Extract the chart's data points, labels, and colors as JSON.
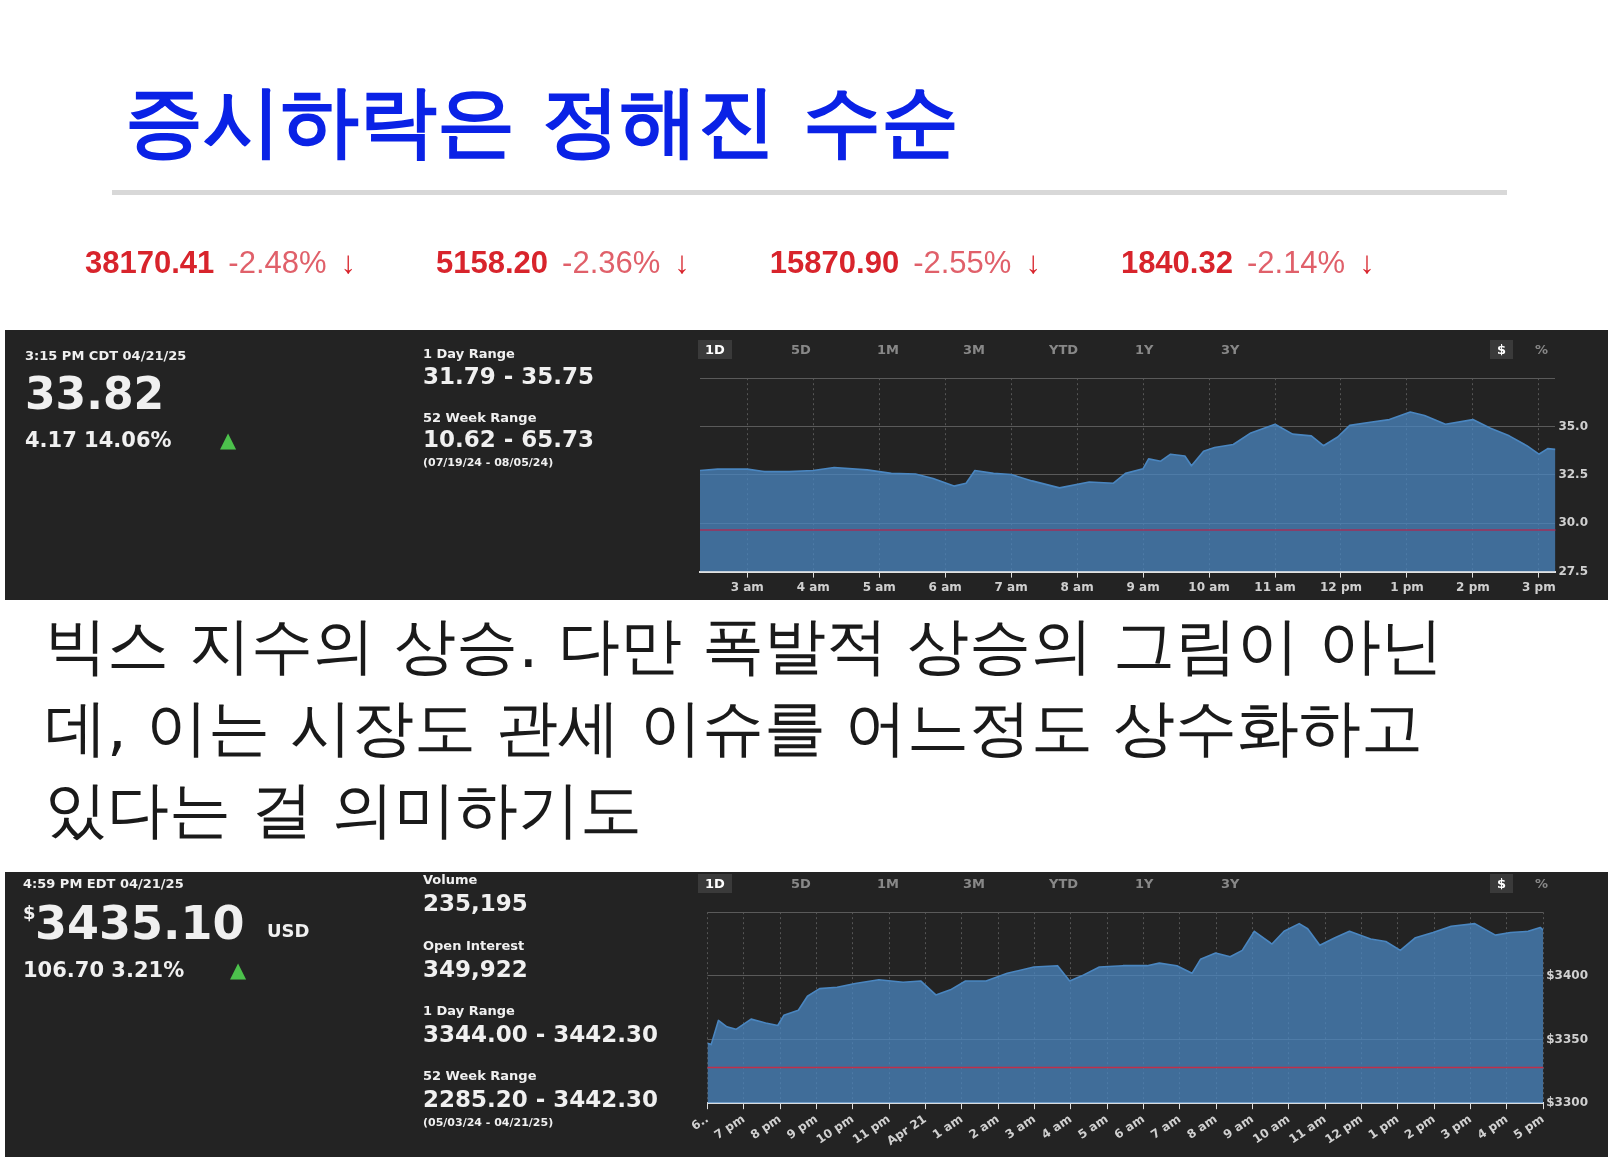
{
  "chart_data": [
    {
      "type": "other",
      "title": "증시하락은 정해진 수순",
      "annotations": [
        "38170.41",
        "-2.48%",
        "↓",
        "5158.20",
        "-2.36%",
        "↓",
        "15870.90",
        "-2.55%",
        "↓",
        "1840.32",
        "-2.14%",
        "↓"
      ]
    },
    {
      "type": "other",
      "annotations": [
        "3:15 PM CDT 04/21/25",
        "33.82",
        "4.17  14.06%",
        "▲",
        "1 Day Range",
        "31.79 - 35.75",
        "52 Week Range",
        "10.62 - 65.73",
        "(07/19/24 - 08/05/24)"
      ]
    },
    {
      "type": "area",
      "annotations": [
        "1D",
        "5D",
        "1M",
        "3M",
        "YTD",
        "1Y",
        "3Y",
        "$",
        "%"
      ],
      "x": [
        "--04-21T02:17",
        "--04-21T02:33",
        "--04-21T03:00",
        "--04-21T03:16",
        "--04-21T03:38",
        "--04-21T04:00",
        "--04-21T04:19",
        "--04-21T04:49",
        "--04-21T05:11",
        "--04-21T05:33",
        "--04-21T05:49",
        "--04-21T06:08",
        "--04-21T06:19",
        "--04-21T06:27",
        "--04-21T06:44",
        "--04-21T07:00",
        "--04-21T07:19",
        "--04-21T07:44",
        "--04-21T08:11",
        "--04-21T08:33",
        "--04-21T08:44",
        "--04-21T09:00",
        "--04-21T09:05",
        "--04-21T09:16",
        "--04-21T09:25",
        "--04-21T09:38",
        "--04-21T09:44",
        "--04-21T09:55",
        "--04-21T10:05",
        "--04-21T10:22",
        "--04-21T10:38",
        "--04-21T11:00",
        "--04-21T11:16",
        "--04-21T11:33",
        "--04-21T11:44",
        "--04-21T11:57",
        "--04-21T12:08",
        "--04-21T12:25",
        "--04-21T12:44",
        "--04-21T13:03",
        "--04-21T13:16",
        "--04-21T13:35",
        "--04-21T14:00",
        "--04-21T14:16",
        "--04-21T14:33",
        "--04-21T14:49",
        "--04-21T15:00",
        "--04-21T15:08",
        "--04-21T15:15"
      ],
      "series": [
        {
          "color": "#4a86c0",
          "values": [
            32.73,
            32.8,
            32.8,
            32.67,
            32.67,
            32.73,
            32.88,
            32.76,
            32.58,
            32.55,
            32.31,
            31.92,
            32.07,
            32.73,
            32.58,
            32.52,
            32.19,
            31.83,
            32.13,
            32.07,
            32.58,
            32.82,
            33.33,
            33.21,
            33.57,
            33.48,
            32.97,
            33.72,
            33.92,
            34.07,
            34.67,
            35.12,
            34.61,
            34.52,
            34.01,
            34.46,
            35.06,
            35.21,
            35.36,
            35.75,
            35.57,
            35.12,
            35.36,
            34.91,
            34.52,
            34.01,
            33.57,
            33.86,
            33.82
          ]
        }
      ],
      "xlim": [
        "--04-21T02:17",
        "--04-21T15:15"
      ],
      "xticks": [
        {
          "value": "--04-21T03:00",
          "label": "3 am"
        },
        {
          "value": "--04-21T04:00",
          "label": "4 am"
        },
        {
          "value": "--04-21T05:00",
          "label": "5 am"
        },
        {
          "value": "--04-21T06:00",
          "label": "6 am"
        },
        {
          "value": "--04-21T07:00",
          "label": "7 am"
        },
        {
          "value": "--04-21T08:00",
          "label": "8 am"
        },
        {
          "value": "--04-21T09:00",
          "label": "9 am"
        },
        {
          "value": "--04-21T10:00",
          "label": "10 am"
        },
        {
          "value": "--04-21T11:00",
          "label": "11 am"
        },
        {
          "value": "--04-21T12:00",
          "label": "12 pm"
        },
        {
          "value": "--04-21T13:00",
          "label": "1 pm"
        },
        {
          "value": "--04-21T14:00",
          "label": "2 pm"
        },
        {
          "value": "--04-21T15:00",
          "label": "3 pm"
        }
      ],
      "ylim": [
        27.5,
        37.5
      ],
      "yticks": [
        27.5,
        {
          "value": 30,
          "label": "30.0"
        },
        32.5,
        {
          "value": 35,
          "label": "35.0"
        },
        {
          "value": 37.5,
          "label": null
        }
      ],
      "ref_lines": [
        {
          "axis": "y",
          "value": 29.65,
          "color": "#a0305a"
        }
      ],
      "grid": true,
      "legend": false,
      "marker": "none"
    },
    {
      "type": "other",
      "annotations": [
        "빅스 지수의 상승. 다만 폭발적 상승의 그림이 아닌데, 이는 시장도 관세 이슈를 어느정도 상수화하고 있다는 걸 의미하기도"
      ]
    },
    {
      "type": "other",
      "annotations": [
        "4:59 PM EDT 04/21/25",
        "$",
        "3435.10",
        "USD",
        "106.70  3.21%",
        "▲",
        "Volume",
        "235,195",
        "Open Interest",
        "349,922",
        "1 Day Range",
        "3344.00 - 3442.30",
        "52 Week Range",
        "2285.20 - 3442.30",
        "(05/03/24 - 04/21/25)"
      ]
    },
    {
      "type": "area",
      "annotations": [
        "1D",
        "5D",
        "1M",
        "3M",
        "YTD",
        "1Y",
        "3Y",
        "$",
        "%"
      ],
      "x": [
        "--04-20T18:00",
        "--04-20T18:06",
        "--04-20T18:18",
        "--04-20T18:32",
        "--04-20T18:47",
        "--04-20T19:12",
        "--04-20T19:36",
        "--04-20T19:56",
        "--04-20T20:06",
        "--04-20T20:30",
        "--04-20T20:45",
        "--04-20T21:05",
        "--04-20T21:34",
        "--04-20T22:04",
        "--04-20T22:43",
        "--04-20T23:23",
        "--04-20T23:52",
        "--04-21T00:17",
        "--04-21T00:41",
        "--04-21T01:06",
        "--04-21T01:40",
        "--04-21T02:15",
        "--04-21T02:59",
        "--04-21T03:38",
        "--04-21T03:58",
        "--04-21T04:18",
        "--04-21T04:47",
        "--04-21T05:26",
        "--04-21T06:06",
        "--04-21T06:26",
        "--04-21T06:55",
        "--04-21T07:20",
        "--04-21T07:34",
        "--04-21T07:59",
        "--04-21T08:23",
        "--04-21T08:43",
        "--04-21T09:03",
        "--04-21T09:32",
        "--04-21T09:52",
        "--04-21T10:17",
        "--04-21T10:31",
        "--04-21T10:51",
        "--04-21T11:16",
        "--04-21T11:40",
        "--04-21T12:15",
        "--04-21T12:40",
        "--04-21T13:04",
        "--04-21T13:29",
        "--04-21T13:58",
        "--04-21T14:28",
        "--04-21T15:07",
        "--04-21T15:41",
        "--04-21T16:06",
        "--04-21T16:35",
        "--04-21T16:55",
        "--04-21T17:00"
      ],
      "series": [
        {
          "color": "#4a86c0",
          "values": [
            3347,
            3346,
            3365,
            3360,
            3358,
            3366,
            3363,
            3361,
            3369,
            3373,
            3384,
            3390,
            3391,
            3394,
            3397,
            3395,
            3396,
            3385,
            3389,
            3396,
            3396,
            3402,
            3407,
            3408,
            3396,
            3400,
            3407,
            3408,
            3408,
            3410,
            3408,
            3402,
            3413,
            3418,
            3415,
            3420,
            3435,
            3425,
            3435,
            3441,
            3437,
            3424,
            3430,
            3435,
            3429,
            3427,
            3420,
            3430,
            3434,
            3439,
            3441,
            3432,
            3434,
            3435,
            3438,
            3436
          ]
        }
      ],
      "xlim": [
        "--04-20T18:00",
        "--04-21T17:00"
      ],
      "xticks": [
        {
          "value": "--04-20T18:00",
          "label": "6.."
        },
        {
          "value": "--04-20T19:00",
          "label": "7 pm"
        },
        {
          "value": "--04-20T20:00",
          "label": "8 pm"
        },
        {
          "value": "--04-20T21:00",
          "label": "9 pm"
        },
        {
          "value": "--04-20T22:00",
          "label": "10 pm"
        },
        {
          "value": "--04-20T23:00",
          "label": "11 pm"
        },
        {
          "value": "--04-21T00:00",
          "label": "Apr 21"
        },
        {
          "value": "--04-21T01:00",
          "label": "1 am"
        },
        {
          "value": "--04-21T02:00",
          "label": "2 am"
        },
        {
          "value": "--04-21T03:00",
          "label": "3 am"
        },
        {
          "value": "--04-21T04:00",
          "label": "4 am"
        },
        {
          "value": "--04-21T05:00",
          "label": "5 am"
        },
        {
          "value": "--04-21T06:00",
          "label": "6 am"
        },
        {
          "value": "--04-21T07:00",
          "label": "7 am"
        },
        {
          "value": "--04-21T08:00",
          "label": "8 am"
        },
        {
          "value": "--04-21T09:00",
          "label": "9 am"
        },
        {
          "value": "--04-21T10:00",
          "label": "10 am"
        },
        {
          "value": "--04-21T11:00",
          "label": "11 am"
        },
        {
          "value": "--04-21T12:00",
          "label": "12 pm"
        },
        {
          "value": "--04-21T13:00",
          "label": "1 pm"
        },
        {
          "value": "--04-21T14:00",
          "label": "2 pm"
        },
        {
          "value": "--04-21T15:00",
          "label": "3 pm"
        },
        {
          "value": "--04-21T16:00",
          "label": "4 pm"
        },
        {
          "value": "--04-21T17:00",
          "label": "5 pm"
        }
      ],
      "ylim": [
        3300,
        3450
      ],
      "yticks": [
        {
          "value": 3300,
          "label": "$3300"
        },
        {
          "value": 3350,
          "label": "$3350"
        },
        {
          "value": 3400,
          "label": "$3400"
        },
        {
          "value": 3450,
          "label": null
        }
      ],
      "ref_lines": [
        {
          "axis": "y",
          "value": 3328,
          "color": "#c0304a"
        }
      ],
      "grid": true,
      "legend": false,
      "marker": "none"
    }
  ]
}
